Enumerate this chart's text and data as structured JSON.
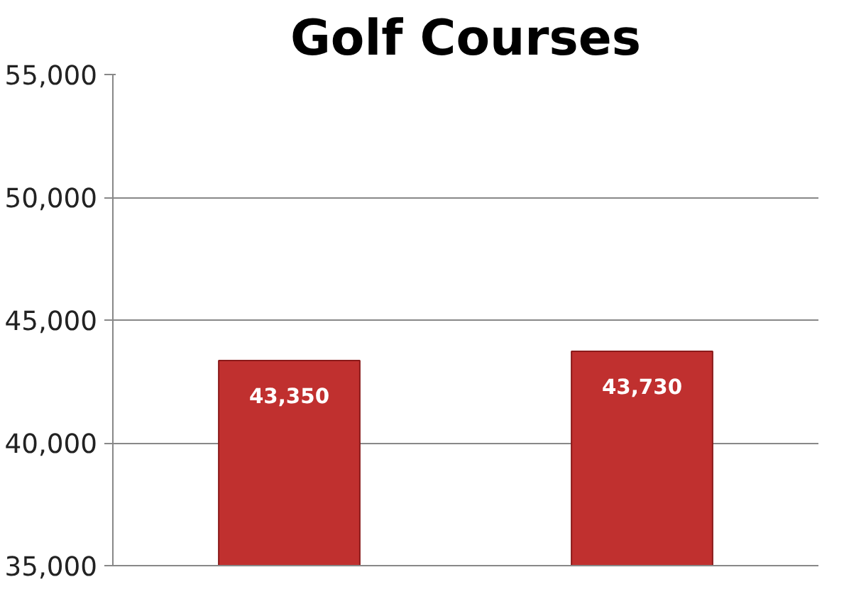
{
  "chart_data": {
    "type": "bar",
    "title": "Golf Courses",
    "categories": [
      null,
      null
    ],
    "values": [
      43350,
      43730
    ],
    "color": "#c0302f",
    "value_labels": [
      "43,350",
      "43,730"
    ],
    "ylim": [
      35000,
      55000
    ],
    "yticks": [
      {
        "value": 35000,
        "label": "35,000"
      },
      {
        "value": 40000,
        "label": "40,000"
      },
      {
        "value": 45000,
        "label": "45,000"
      },
      {
        "value": 50000,
        "label": "50,000"
      },
      {
        "value": 55000,
        "label": "55,000"
      }
    ],
    "grid": "y"
  }
}
